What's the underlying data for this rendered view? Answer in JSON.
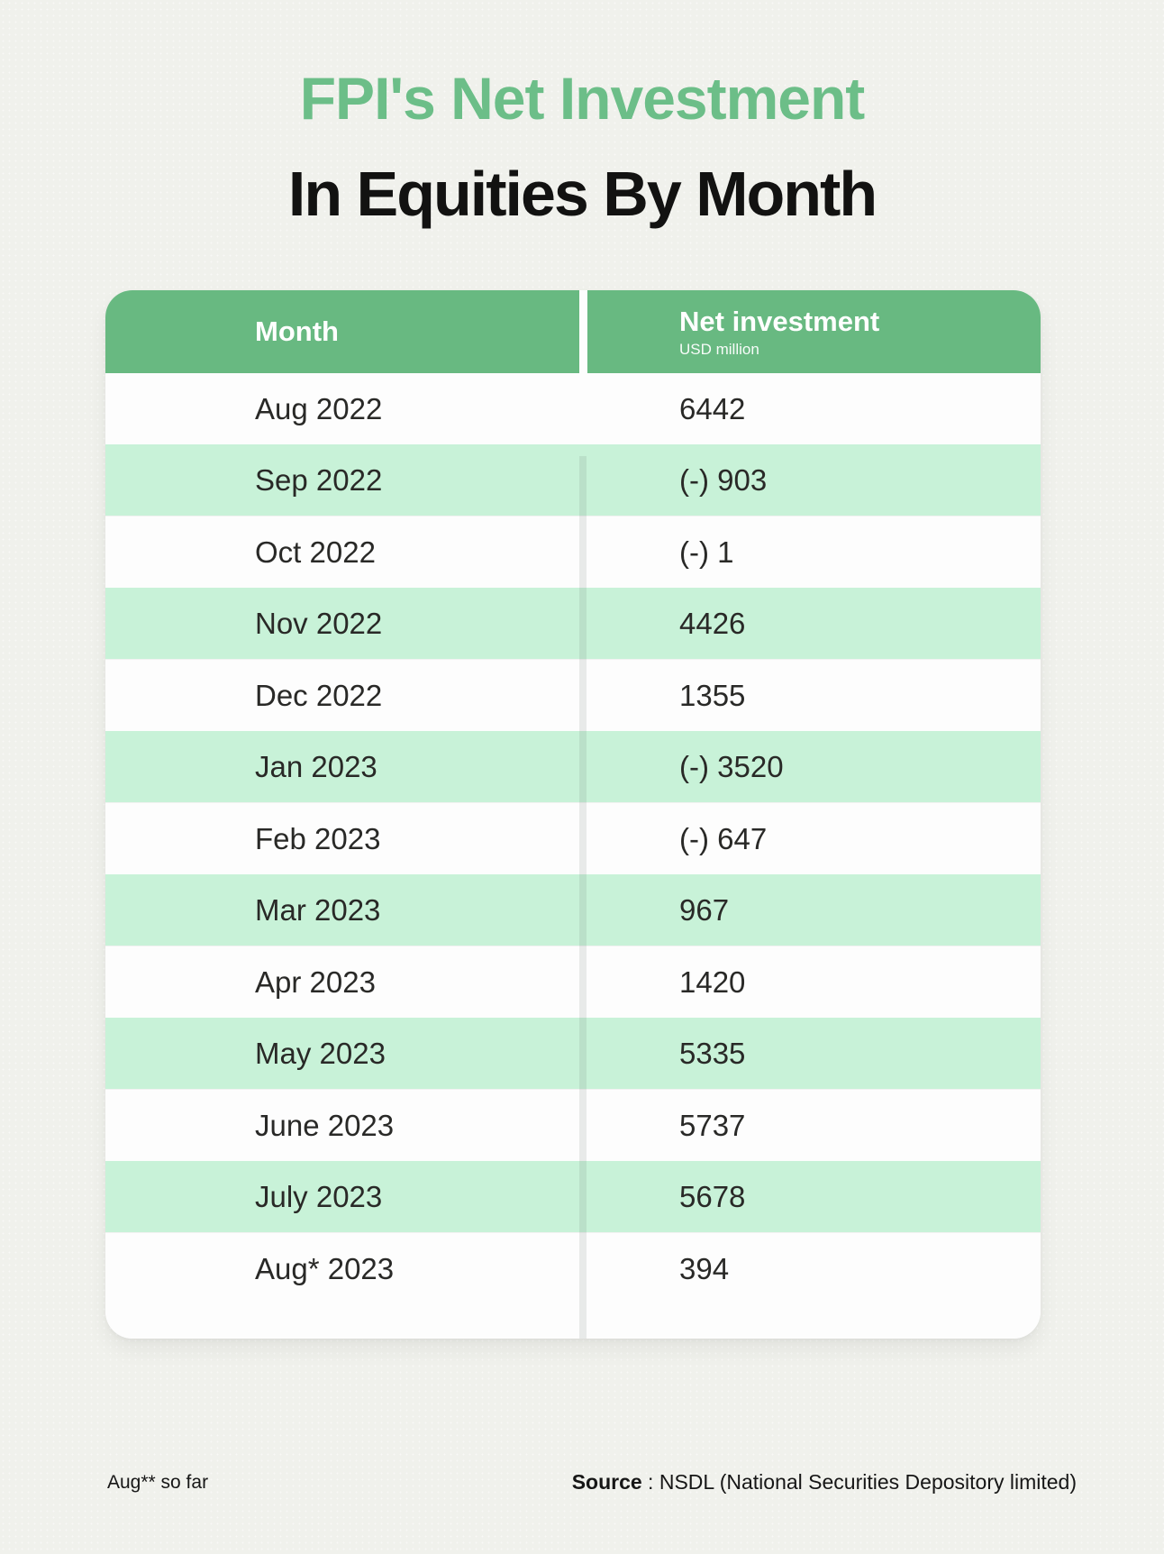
{
  "page": {
    "title_line1": "FPI's Net Investment",
    "title_line2": "In Equities By Month",
    "footnote": "Aug** so far",
    "source_label": "Source",
    "source_text": " : NSDL (National Securities Depository limited)"
  },
  "table": {
    "columns": [
      {
        "label": "Month",
        "sublabel": ""
      },
      {
        "label": "Net investment",
        "sublabel": "USD million"
      }
    ],
    "rows": [
      {
        "month": "Aug 2022",
        "value": "6442"
      },
      {
        "month": "Sep 2022",
        "value": "(-) 903"
      },
      {
        "month": "Oct 2022",
        "value": "(-) 1"
      },
      {
        "month": "Nov 2022",
        "value": "4426"
      },
      {
        "month": "Dec 2022",
        "value": "1355"
      },
      {
        "month": "Jan 2023",
        "value": "(-) 3520"
      },
      {
        "month": "Feb 2023",
        "value": "(-) 647"
      },
      {
        "month": "Mar 2023",
        "value": "967"
      },
      {
        "month": "Apr 2023",
        "value": "1420"
      },
      {
        "month": "May 2023",
        "value": "5335"
      },
      {
        "month": "June 2023",
        "value": "5737"
      },
      {
        "month": "July 2023",
        "value": "5678"
      },
      {
        "month": "Aug* 2023",
        "value": "394"
      }
    ]
  },
  "chart_data": {
    "type": "table",
    "title": "FPI's Net Investment In Equities By Month",
    "columns": [
      "Month",
      "Net investment (USD million)"
    ],
    "categories": [
      "Aug 2022",
      "Sep 2022",
      "Oct 2022",
      "Nov 2022",
      "Dec 2022",
      "Jan 2023",
      "Feb 2023",
      "Mar 2023",
      "Apr 2023",
      "May 2023",
      "June 2023",
      "July 2023",
      "Aug* 2023"
    ],
    "values_display": [
      "6442",
      "(-) 903",
      "(-) 1",
      "4426",
      "1355",
      "(-) 3520",
      "(-) 647",
      "967",
      "1420",
      "5335",
      "5737",
      "5678",
      "394"
    ],
    "values_numeric": [
      6442,
      -903,
      -1,
      4426,
      1355,
      -3520,
      -647,
      967,
      1420,
      5335,
      5737,
      5678,
      394
    ],
    "note": "Aug** so far",
    "source": "NSDL (National Securities Depository limited)"
  },
  "colors": {
    "title_green": "#6cbe88",
    "header_green": "#68b981",
    "row_green": "#c8f2d8",
    "row_white": "#fdfdfd",
    "background": "#f0f1ec",
    "text_dark": "#292927"
  }
}
